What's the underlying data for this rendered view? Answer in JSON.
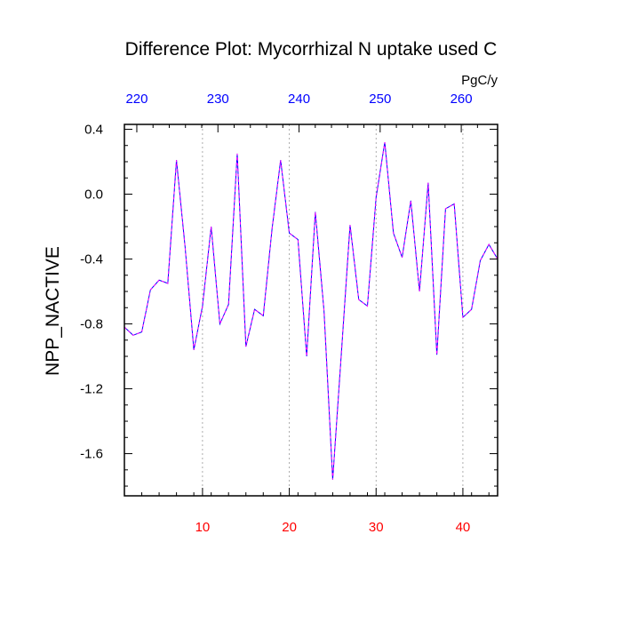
{
  "chart_data": {
    "type": "line",
    "title": "Difference Plot: Mycorrhizal N uptake used C",
    "ylabel": "NPP_NACTIVE",
    "x_top_unit": "PgC/y",
    "xlim": [
      1,
      44
    ],
    "ylim": [
      -1.86,
      0.43
    ],
    "x_ticks_bottom": [
      10,
      20,
      30,
      40
    ],
    "x_ticks_top": [
      220,
      230,
      240,
      250,
      260
    ],
    "y_ticks": [
      0.4,
      0.0,
      -0.4,
      -0.8,
      -1.2,
      -1.6
    ],
    "y_tick_labels": [
      "0.4",
      "0.0",
      "-0.4",
      "-0.8",
      "-1.2",
      "-1.6"
    ],
    "top_axis_map": {
      "bottom_ref": 10,
      "top_ref": 228.1,
      "bottom_ref2": 40,
      "top_ref2": 260.2
    },
    "vertical_gridlines": [
      10,
      20,
      30,
      40
    ],
    "colors": {
      "bottom_ticks": "#ff0000",
      "top_ticks": "#0000ff",
      "series_a": "#0000ff",
      "series_b": "#ff00ff"
    },
    "series": [
      {
        "x": [
          1,
          2,
          3,
          4,
          5,
          6,
          7,
          8,
          9,
          10,
          11,
          12,
          13,
          14,
          15,
          16,
          17,
          18,
          19,
          20,
          21,
          22,
          23,
          24,
          25,
          26,
          27,
          28,
          29,
          30,
          31,
          32,
          33,
          34,
          35,
          36,
          37,
          38,
          39,
          40,
          41,
          42,
          43,
          44
        ],
        "values": [
          -0.82,
          -0.87,
          -0.85,
          -0.59,
          -0.53,
          -0.55,
          0.21,
          -0.33,
          -0.96,
          -0.69,
          -0.2,
          -0.8,
          -0.68,
          0.25,
          -0.94,
          -0.71,
          -0.75,
          -0.22,
          0.21,
          -0.24,
          -0.28,
          -1.0,
          -0.11,
          -0.72,
          -1.76,
          -0.98,
          -0.19,
          -0.65,
          -0.69,
          -0.02,
          0.32,
          -0.24,
          -0.39,
          -0.04,
          -0.6,
          0.07,
          -0.99,
          -0.09,
          -0.06,
          -0.76,
          -0.71,
          -0.41,
          -0.31,
          -0.4
        ]
      }
    ]
  }
}
